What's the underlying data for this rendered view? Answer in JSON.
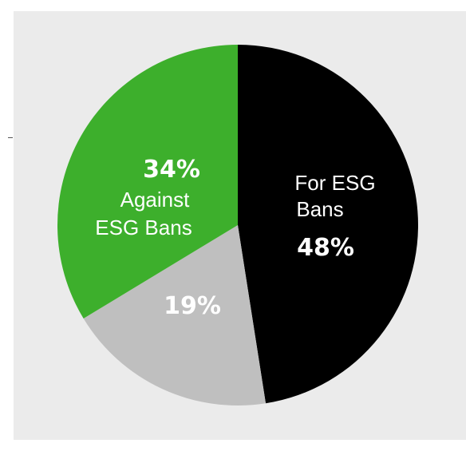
{
  "chart_data": {
    "type": "pie",
    "title": "",
    "slices": [
      {
        "name": "For ESG Bans",
        "label_lines": [
          "For ESG",
          "Bans"
        ],
        "value": 48,
        "value_label": "48%",
        "color": "#000000",
        "text_color": "#ffffff"
      },
      {
        "name": "",
        "label_lines": [],
        "value": 19,
        "value_label": "19%",
        "color": "#bfbfbf",
        "text_color": "#ffffff"
      },
      {
        "name": "Against ESG Bans",
        "label_lines": [
          "Against",
          "ESG Bans"
        ],
        "value": 34,
        "value_label": "34%",
        "color": "#3daf2c",
        "text_color": "#ffffff"
      }
    ],
    "start_angle_deg": 0,
    "direction": "clockwise",
    "legend": "none"
  },
  "colors": {
    "background": "#ebebeb",
    "page": "#ffffff"
  }
}
